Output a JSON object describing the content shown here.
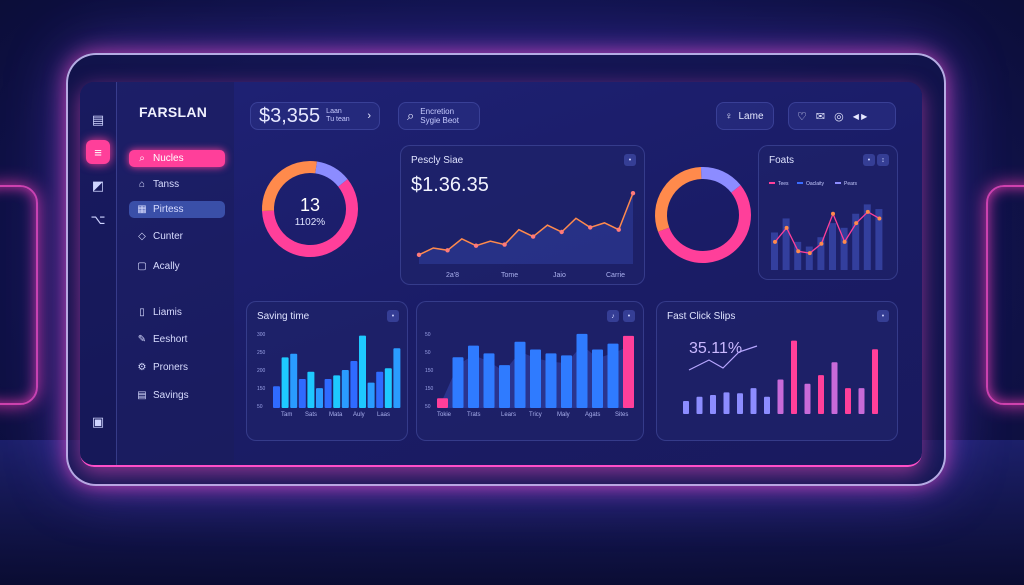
{
  "brand": "FARSLAN",
  "colors": {
    "pink": "#ff3f9a",
    "orange": "#ff8a4c",
    "cyan": "#20d4ff",
    "blue": "#3a6cff",
    "lavender": "#8c8cff"
  },
  "rail": [
    "file-icon",
    "list-icon",
    "chart-icon",
    "flow-icon",
    "doc-icon"
  ],
  "nav": {
    "top": [
      {
        "label": "Nucles",
        "icon": "search-icon"
      },
      {
        "label": "Tanss",
        "icon": "home-icon"
      },
      {
        "label": "Pirtess",
        "icon": "grid-icon"
      },
      {
        "label": "Cunter",
        "icon": "tag-icon"
      },
      {
        "label": "Acally",
        "icon": "cart-icon"
      }
    ],
    "bottom": [
      {
        "label": "Liamis",
        "icon": "doc-icon"
      },
      {
        "label": "Eeshort",
        "icon": "pen-icon"
      },
      {
        "label": "Proners",
        "icon": "settings-icon"
      },
      {
        "label": "Savings",
        "icon": "wallet-icon"
      }
    ]
  },
  "topbar": {
    "amount": "$3,355",
    "amount_sub1": "Laan",
    "amount_sub2": "Tu tean",
    "search_line1": "Encretion",
    "search_line2": "Sygie Beot",
    "user": "Lame"
  },
  "donut1": {
    "value": "13",
    "percent": "1102%"
  },
  "card_sales": {
    "title": "Pescly Siae",
    "value": "$1.36.35",
    "xlabels": [
      "2a'8",
      "Tome",
      "Jaio",
      "Carrie"
    ]
  },
  "card_feats": {
    "title": "Foats",
    "legend": [
      "Tees",
      "Oaclaity",
      "Pears"
    ]
  },
  "card_saving": {
    "title": "Saving time",
    "ylabels": [
      "300",
      "250",
      "200",
      "150",
      "50"
    ],
    "xlabels": [
      "Tam",
      "Sats",
      "Mata",
      "Auly",
      "Laas"
    ]
  },
  "card_middle": {
    "ylabels": [
      "50",
      "50",
      "150",
      "150",
      "50"
    ],
    "xlabels": [
      "Tokie",
      "Trats",
      "Lears",
      "Tricy",
      "Maly",
      "Agats",
      "Sites"
    ]
  },
  "card_fast": {
    "title": "Fast Click Slips",
    "percent": "35.11%"
  },
  "chart_data": [
    {
      "type": "donut",
      "values": [
        60,
        28,
        12
      ],
      "colors": [
        "#ff3f9a",
        "#ff8a4c",
        "#8c8cff"
      ]
    },
    {
      "type": "line",
      "title": "Pescly Siae",
      "values": [
        8,
        14,
        12,
        22,
        16,
        20,
        17,
        30,
        24,
        34,
        28,
        40,
        32,
        36,
        30,
        62
      ]
    },
    {
      "type": "donut",
      "values": [
        55,
        30,
        15
      ],
      "colors": [
        "#ff3f9a",
        "#ff8a4c",
        "#8c8cff"
      ]
    },
    {
      "type": "line",
      "title": "Foats",
      "values": [
        30,
        45,
        20,
        18,
        28,
        60,
        30,
        50,
        62,
        55
      ],
      "bars": [
        40,
        55,
        30,
        25,
        35,
        50,
        45,
        60,
        70,
        65
      ]
    },
    {
      "type": "bar",
      "title": "Saving time",
      "values": [
        60,
        140,
        150,
        80,
        100,
        55,
        80,
        90,
        105,
        130,
        200,
        70,
        100,
        110,
        165
      ]
    },
    {
      "type": "bar",
      "values": [
        25,
        130,
        160,
        140,
        110,
        170,
        150,
        140,
        135,
        190,
        150,
        165,
        185
      ]
    },
    {
      "type": "bar",
      "title": "Fast Click Slips",
      "values": [
        15,
        20,
        22,
        25,
        24,
        30,
        20,
        40,
        85,
        35,
        45,
        60,
        30,
        30,
        75
      ]
    }
  ]
}
